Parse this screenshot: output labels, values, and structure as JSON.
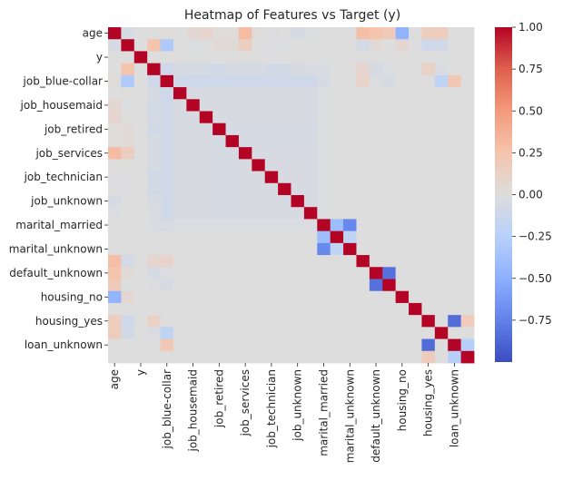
{
  "chart_data": {
    "type": "heatmap",
    "title": "Heatmap of Features vs Target (y)",
    "labels": [
      "age",
      "",
      "y",
      "",
      "job_blue-collar",
      "",
      "job_housemaid",
      "",
      "job_retired",
      "",
      "job_services",
      "",
      "job_technician",
      "",
      "job_unknown",
      "",
      "marital_married",
      "",
      "marital_unknown",
      "",
      "default_unknown",
      "",
      "housing_no",
      "",
      "housing_yes",
      "",
      "loan_unknown",
      ""
    ],
    "y_tick_labels": [
      "age",
      "y",
      "job_blue-collar",
      "job_housemaid",
      "job_retired",
      "job_services",
      "job_technician",
      "job_unknown",
      "marital_married",
      "marital_unknown",
      "default_unknown",
      "housing_no",
      "housing_yes",
      "loan_unknown"
    ],
    "x_tick_labels": [
      "age",
      "y",
      "job_blue-collar",
      "job_housemaid",
      "job_retired",
      "job_services",
      "job_technician",
      "job_unknown",
      "marital_married",
      "marital_unknown",
      "default_unknown",
      "housing_no",
      "housing_yes",
      "loan_unknown"
    ],
    "colorbar": {
      "min": -1.0,
      "max": 1.0,
      "ticks": [
        1.0,
        0.75,
        0.5,
        0.25,
        0.0,
        -0.25,
        -0.5,
        -0.75
      ],
      "tick_labels": [
        "1.00",
        "0.75",
        "0.50",
        "0.25",
        "0.00",
        "−0.25",
        "−0.50",
        "−0.75"
      ]
    },
    "colormap": "coolwarm",
    "values": [
      [
        1.0,
        -0.05,
        0.0,
        0.0,
        0.01,
        0.0,
        0.06,
        0.08,
        0.02,
        0.02,
        0.3,
        0.01,
        -0.01,
        0.0,
        -0.05,
        -0.02,
        0.0,
        0.0,
        0.0,
        0.28,
        0.25,
        0.19,
        -0.47,
        0.0,
        0.16,
        0.17,
        0.0,
        0.0
      ],
      [
        -0.05,
        1.0,
        0.0,
        0.25,
        -0.3,
        0.01,
        -0.02,
        0.0,
        0.03,
        0.03,
        0.15,
        0.0,
        -0.01,
        -0.02,
        0.0,
        0.0,
        0.0,
        0.0,
        0.0,
        -0.07,
        0.04,
        0.0,
        0.07,
        0.0,
        -0.1,
        -0.08,
        0.0,
        0.0
      ],
      [
        0.0,
        0.0,
        1.0,
        0.0,
        0.0,
        0.0,
        0.0,
        0.0,
        0.0,
        0.0,
        0.0,
        0.0,
        0.0,
        0.0,
        0.0,
        0.0,
        0.0,
        0.0,
        0.0,
        0.0,
        0.0,
        0.0,
        0.0,
        0.0,
        0.0,
        0.0,
        0.0,
        0.0
      ],
      [
        0.0,
        0.25,
        0.0,
        1.0,
        -0.1,
        -0.05,
        -0.06,
        -0.06,
        -0.08,
        -0.05,
        -0.05,
        -0.05,
        -0.08,
        -0.08,
        -0.04,
        -0.03,
        -0.03,
        0.0,
        0.0,
        0.08,
        -0.05,
        -0.02,
        0.0,
        0.0,
        0.12,
        -0.03,
        0.0,
        0.0
      ],
      [
        0.01,
        -0.3,
        0.0,
        -0.1,
        1.0,
        -0.1,
        -0.1,
        -0.1,
        -0.1,
        -0.1,
        -0.1,
        -0.1,
        -0.1,
        -0.1,
        -0.1,
        -0.1,
        -0.05,
        0.0,
        0.0,
        0.1,
        -0.02,
        -0.05,
        0.0,
        0.0,
        0.0,
        -0.2,
        0.21,
        0.0
      ],
      [
        0.0,
        0.01,
        0.0,
        -0.05,
        -0.1,
        1.0,
        -0.04,
        -0.04,
        -0.04,
        -0.04,
        -0.04,
        -0.04,
        -0.04,
        -0.04,
        -0.04,
        -0.04,
        -0.02,
        0.0,
        0.0,
        0.0,
        0.0,
        0.0,
        0.0,
        0.0,
        0.0,
        0.0,
        0.0,
        0.0
      ],
      [
        0.06,
        -0.02,
        0.0,
        -0.06,
        -0.1,
        -0.04,
        1.0,
        -0.04,
        -0.04,
        -0.04,
        -0.04,
        -0.04,
        -0.04,
        -0.04,
        -0.04,
        -0.04,
        -0.02,
        0.0,
        0.0,
        0.0,
        0.0,
        0.0,
        0.0,
        0.0,
        0.0,
        0.0,
        0.0,
        0.0
      ],
      [
        0.08,
        0.0,
        0.0,
        -0.06,
        -0.1,
        -0.04,
        -0.04,
        1.0,
        -0.04,
        -0.04,
        -0.04,
        -0.04,
        -0.04,
        -0.04,
        -0.04,
        -0.04,
        -0.02,
        0.0,
        0.0,
        0.0,
        0.0,
        0.0,
        0.0,
        0.0,
        0.0,
        0.0,
        0.0,
        0.0
      ],
      [
        0.02,
        0.03,
        0.0,
        -0.08,
        -0.1,
        -0.04,
        -0.04,
        -0.04,
        1.0,
        -0.05,
        -0.05,
        -0.05,
        -0.05,
        -0.05,
        -0.05,
        -0.05,
        -0.02,
        0.0,
        0.0,
        0.0,
        0.0,
        0.0,
        0.0,
        0.0,
        0.0,
        0.0,
        0.0,
        0.0
      ],
      [
        0.02,
        0.03,
        0.0,
        -0.05,
        -0.1,
        -0.04,
        -0.04,
        -0.04,
        -0.05,
        1.0,
        -0.05,
        -0.05,
        -0.05,
        -0.05,
        -0.05,
        -0.05,
        -0.02,
        0.0,
        0.0,
        0.0,
        0.0,
        0.0,
        0.0,
        0.0,
        0.0,
        0.0,
        0.0,
        0.0
      ],
      [
        0.3,
        0.15,
        0.0,
        -0.05,
        -0.1,
        -0.04,
        -0.04,
        -0.04,
        -0.05,
        -0.05,
        1.0,
        -0.04,
        -0.04,
        -0.04,
        -0.04,
        -0.04,
        -0.02,
        0.0,
        0.0,
        0.0,
        0.0,
        0.0,
        0.0,
        0.0,
        0.0,
        0.0,
        0.0,
        0.0
      ],
      [
        0.01,
        0.0,
        0.0,
        -0.05,
        -0.1,
        -0.04,
        -0.04,
        -0.04,
        -0.05,
        -0.05,
        -0.04,
        1.0,
        -0.04,
        -0.04,
        -0.04,
        -0.04,
        -0.02,
        0.0,
        0.0,
        0.0,
        0.0,
        0.0,
        0.0,
        0.0,
        0.0,
        0.0,
        0.0,
        0.0
      ],
      [
        -0.01,
        -0.01,
        0.0,
        -0.08,
        -0.1,
        -0.04,
        -0.04,
        -0.04,
        -0.05,
        -0.05,
        -0.04,
        -0.04,
        1.0,
        -0.04,
        -0.04,
        -0.04,
        -0.02,
        0.0,
        0.0,
        0.0,
        0.0,
        0.0,
        0.0,
        0.0,
        0.0,
        0.0,
        0.0,
        0.0
      ],
      [
        0.0,
        -0.02,
        0.0,
        -0.08,
        -0.1,
        -0.04,
        -0.04,
        -0.04,
        -0.05,
        -0.05,
        -0.04,
        -0.04,
        -0.04,
        1.0,
        -0.04,
        -0.04,
        -0.02,
        0.0,
        0.0,
        0.0,
        0.0,
        0.0,
        0.0,
        0.0,
        0.0,
        0.0,
        0.0,
        0.0
      ],
      [
        -0.05,
        0.0,
        0.0,
        -0.04,
        -0.1,
        -0.04,
        -0.04,
        -0.04,
        -0.05,
        -0.05,
        -0.04,
        -0.04,
        -0.04,
        -0.04,
        1.0,
        -0.04,
        -0.02,
        0.0,
        0.0,
        0.0,
        0.0,
        0.0,
        0.0,
        0.0,
        0.0,
        0.0,
        0.0,
        0.0
      ],
      [
        -0.02,
        0.0,
        0.0,
        -0.03,
        -0.1,
        -0.04,
        -0.04,
        -0.04,
        -0.05,
        -0.05,
        -0.04,
        -0.04,
        -0.04,
        -0.04,
        -0.04,
        1.0,
        -0.02,
        0.0,
        0.0,
        0.0,
        0.0,
        0.0,
        0.0,
        0.0,
        0.0,
        0.0,
        0.0,
        0.0
      ],
      [
        0.0,
        0.0,
        0.0,
        -0.03,
        -0.05,
        -0.02,
        -0.02,
        -0.02,
        -0.02,
        -0.02,
        -0.02,
        -0.02,
        -0.02,
        -0.02,
        -0.02,
        -0.02,
        1.0,
        -0.4,
        -0.72,
        0.0,
        0.0,
        0.0,
        0.0,
        0.0,
        0.0,
        0.0,
        0.0,
        0.0
      ],
      [
        0.0,
        0.0,
        0.0,
        0.0,
        0.0,
        0.0,
        0.0,
        0.0,
        0.0,
        0.0,
        0.0,
        0.0,
        0.0,
        0.0,
        0.0,
        0.0,
        -0.4,
        1.0,
        -0.2,
        0.0,
        0.0,
        0.0,
        0.0,
        0.0,
        0.0,
        0.0,
        0.0,
        0.0
      ],
      [
        0.0,
        0.0,
        0.0,
        0.0,
        0.0,
        0.0,
        0.0,
        0.0,
        0.0,
        0.0,
        0.0,
        0.0,
        0.0,
        0.0,
        0.0,
        0.0,
        -0.72,
        -0.2,
        1.0,
        0.0,
        0.0,
        0.0,
        0.0,
        0.0,
        0.0,
        0.0,
        0.0,
        0.0
      ],
      [
        0.28,
        -0.07,
        0.0,
        0.08,
        0.1,
        0.0,
        0.0,
        0.0,
        0.0,
        0.0,
        0.0,
        0.0,
        0.0,
        0.0,
        0.0,
        0.0,
        0.0,
        0.0,
        0.0,
        1.0,
        0.0,
        0.0,
        0.0,
        0.0,
        0.0,
        0.0,
        0.0,
        0.0
      ],
      [
        0.25,
        0.04,
        0.0,
        -0.05,
        -0.02,
        0.0,
        0.0,
        0.0,
        0.0,
        0.0,
        0.0,
        0.0,
        0.0,
        0.0,
        0.0,
        0.0,
        0.0,
        0.0,
        0.0,
        0.0,
        1.0,
        -0.83,
        0.0,
        0.0,
        0.0,
        0.0,
        0.0,
        0.0
      ],
      [
        0.19,
        0.0,
        0.0,
        -0.02,
        -0.05,
        0.0,
        0.0,
        0.0,
        0.0,
        0.0,
        0.0,
        0.0,
        0.0,
        0.0,
        0.0,
        0.0,
        0.0,
        0.0,
        0.0,
        0.0,
        -0.83,
        1.0,
        0.0,
        0.0,
        0.0,
        0.0,
        0.0,
        0.0
      ],
      [
        -0.47,
        0.07,
        0.0,
        0.0,
        0.0,
        0.0,
        0.0,
        0.0,
        0.0,
        0.0,
        0.0,
        0.0,
        0.0,
        0.0,
        0.0,
        0.0,
        0.0,
        0.0,
        0.0,
        0.0,
        0.0,
        0.0,
        1.0,
        0.0,
        0.0,
        0.0,
        0.0,
        0.0
      ],
      [
        0.0,
        0.0,
        0.0,
        0.0,
        0.0,
        0.0,
        0.0,
        0.0,
        0.0,
        0.0,
        0.0,
        0.0,
        0.0,
        0.0,
        0.0,
        0.0,
        0.0,
        0.0,
        0.0,
        0.0,
        0.0,
        0.0,
        0.0,
        1.0,
        0.0,
        0.0,
        0.0,
        0.0
      ],
      [
        0.16,
        -0.1,
        0.0,
        0.12,
        0.0,
        0.0,
        0.0,
        0.0,
        0.0,
        0.0,
        0.0,
        0.0,
        0.0,
        0.0,
        0.0,
        0.0,
        0.0,
        0.0,
        0.0,
        0.0,
        0.0,
        0.0,
        0.0,
        0.0,
        1.0,
        0.0,
        -0.85,
        0.18
      ],
      [
        0.17,
        -0.08,
        0.0,
        -0.03,
        -0.2,
        0.0,
        0.0,
        0.0,
        0.0,
        0.0,
        0.0,
        0.0,
        0.0,
        0.0,
        0.0,
        0.0,
        0.0,
        0.0,
        0.0,
        0.0,
        0.0,
        0.0,
        0.0,
        0.0,
        0.0,
        1.0,
        0.0,
        0.0
      ],
      [
        0.0,
        0.0,
        0.0,
        0.0,
        0.21,
        0.0,
        0.0,
        0.0,
        0.0,
        0.0,
        0.0,
        0.0,
        0.0,
        0.0,
        0.0,
        0.0,
        0.0,
        0.0,
        0.0,
        0.0,
        0.0,
        0.0,
        0.0,
        0.0,
        -0.85,
        0.0,
        1.0,
        -0.25
      ],
      [
        0.0,
        0.0,
        0.0,
        0.0,
        0.0,
        0.0,
        0.0,
        0.0,
        0.0,
        0.0,
        0.0,
        0.0,
        0.0,
        0.0,
        0.0,
        0.0,
        0.0,
        0.0,
        0.0,
        0.0,
        0.0,
        0.0,
        0.0,
        0.0,
        0.18,
        0.0,
        -0.25,
        1.0
      ]
    ]
  }
}
